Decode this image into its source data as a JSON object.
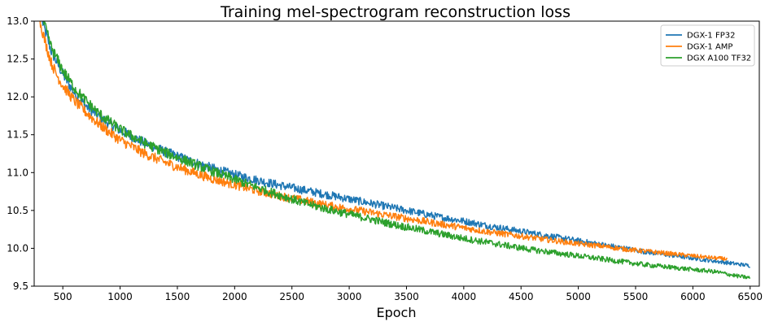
{
  "chart_data": {
    "type": "line",
    "title": "Training mel-spectrogram reconstruction loss",
    "xlabel": "Epoch",
    "ylabel": "",
    "xlim": [
      250,
      6580
    ],
    "ylim": [
      9.5,
      13.0
    ],
    "xticks": [
      "500",
      "1000",
      "1500",
      "2000",
      "2500",
      "3000",
      "3500",
      "4000",
      "4500",
      "5000",
      "5500",
      "6000",
      "6500"
    ],
    "yticks": [
      "9.5",
      "10.0",
      "10.5",
      "11.0",
      "11.5",
      "12.0",
      "12.5",
      "13.0"
    ],
    "grid": false,
    "legend_position": "top-right",
    "series": [
      {
        "name": "DGX-1 FP32",
        "color": "#1f77b4",
        "x": [
          320,
          400,
          500,
          600,
          700,
          800,
          900,
          1000,
          1200,
          1400,
          1600,
          1800,
          2000,
          2200,
          2400,
          2600,
          2800,
          3000,
          3200,
          3400,
          3600,
          3800,
          4000,
          4200,
          4400,
          4600,
          4800,
          5000,
          5200,
          5400,
          5600,
          5800,
          6000,
          6200,
          6400,
          6500
        ],
        "y": [
          13.0,
          12.6,
          12.3,
          12.05,
          11.88,
          11.76,
          11.65,
          11.56,
          11.4,
          11.27,
          11.16,
          11.06,
          10.97,
          10.9,
          10.83,
          10.77,
          10.71,
          10.65,
          10.59,
          10.53,
          10.47,
          10.41,
          10.36,
          10.3,
          10.25,
          10.2,
          10.15,
          10.1,
          10.05,
          10.0,
          9.95,
          9.91,
          9.87,
          9.83,
          9.79,
          9.77
        ]
      },
      {
        "name": "DGX-1 AMP",
        "color": "#ff7f0e",
        "x": [
          300,
          350,
          400,
          450,
          500,
          600,
          700,
          800,
          900,
          1000,
          1200,
          1400,
          1600,
          1800,
          2000,
          2200,
          2400,
          2600,
          2800,
          3000,
          3200,
          3400,
          3600,
          3800,
          4000,
          4200,
          4400,
          4600,
          4800,
          5000,
          5200,
          5400,
          5600,
          5800,
          6000,
          6200,
          6300
        ],
        "y": [
          13.0,
          12.7,
          12.45,
          12.28,
          12.15,
          11.95,
          11.8,
          11.66,
          11.54,
          11.43,
          11.26,
          11.13,
          11.02,
          10.92,
          10.84,
          10.76,
          10.69,
          10.63,
          10.57,
          10.52,
          10.47,
          10.42,
          10.37,
          10.32,
          10.27,
          10.22,
          10.18,
          10.14,
          10.1,
          10.06,
          10.03,
          9.99,
          9.96,
          9.93,
          9.9,
          9.87,
          9.86
        ]
      },
      {
        "name": "DGX A100 TF32",
        "color": "#2ca02c",
        "x": [
          330,
          400,
          500,
          600,
          700,
          800,
          900,
          1000,
          1200,
          1400,
          1600,
          1800,
          2000,
          2200,
          2400,
          2600,
          2800,
          3000,
          3200,
          3400,
          3600,
          3800,
          4000,
          4200,
          4400,
          4600,
          4800,
          5000,
          5200,
          5400,
          5600,
          5800,
          6000,
          6200,
          6400,
          6500
        ],
        "y": [
          13.0,
          12.65,
          12.35,
          12.12,
          11.95,
          11.8,
          11.68,
          11.57,
          11.4,
          11.26,
          11.14,
          11.02,
          10.91,
          10.8,
          10.7,
          10.6,
          10.52,
          10.45,
          10.38,
          10.31,
          10.25,
          10.19,
          10.13,
          10.08,
          10.03,
          9.98,
          9.94,
          9.9,
          9.86,
          9.82,
          9.78,
          9.75,
          9.72,
          9.69,
          9.63,
          9.61
        ]
      }
    ]
  }
}
